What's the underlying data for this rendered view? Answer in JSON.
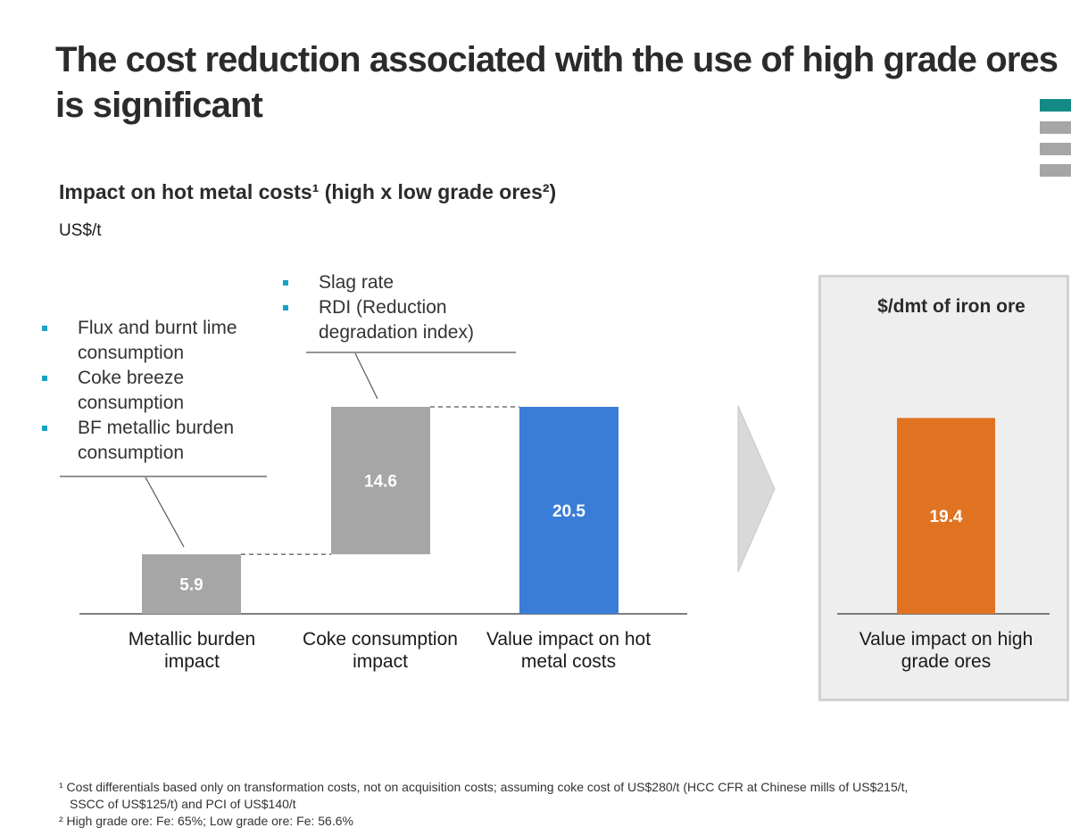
{
  "title": {
    "line1": "The cost reduction associated with the use of high grade ores",
    "line2": "is significant"
  },
  "chart_title": "Impact on hot metal costs¹ (high x low grade ores²)",
  "unit": "US$/t",
  "bullets_metallic": [
    "Flux and burnt lime consumption",
    "Coke breeze consumption",
    "BF metallic burden consumption"
  ],
  "bullets_coke": [
    "Slag rate",
    "RDI (Reduction degradation index)"
  ],
  "panel_title": "$/dmt of iron ore",
  "colors": {
    "gray": "#a6a6a6",
    "blue": "#3a7dd8",
    "orange": "#e07322",
    "teal": "#17a2c6",
    "deco_teal": "#138a83"
  },
  "chart_data": [
    {
      "type": "bar",
      "subtype": "waterfall",
      "title": "Impact on hot metal costs¹ (high x low grade ores²)",
      "ylabel": "US$/t",
      "categories": [
        "Metallic burden impact",
        "Coke consumption impact",
        "Value impact on hot metal costs"
      ],
      "values": [
        5.9,
        14.6,
        20.5
      ],
      "bases": [
        0,
        5.9,
        0
      ],
      "kinds": [
        "step",
        "step",
        "total"
      ],
      "ylim": [
        0,
        20.5
      ]
    },
    {
      "type": "bar",
      "title": "$/dmt of iron ore",
      "categories": [
        "Value impact on high grade ores"
      ],
      "values": [
        19.4
      ],
      "ylim": [
        0,
        20.5
      ]
    }
  ],
  "footnotes": {
    "note1_line1": "¹ Cost differentials based only on transformation costs, not on acquisition costs; assuming  coke cost of US$280/t  (HCC CFR at Chinese mills  of US$215/t,",
    "note1_line2": "SSCC  of US$125/t)  and PCI  of US$140/t",
    "note2": "² High grade ore: Fe: 65%; Low grade ore: Fe: 56.6%"
  }
}
